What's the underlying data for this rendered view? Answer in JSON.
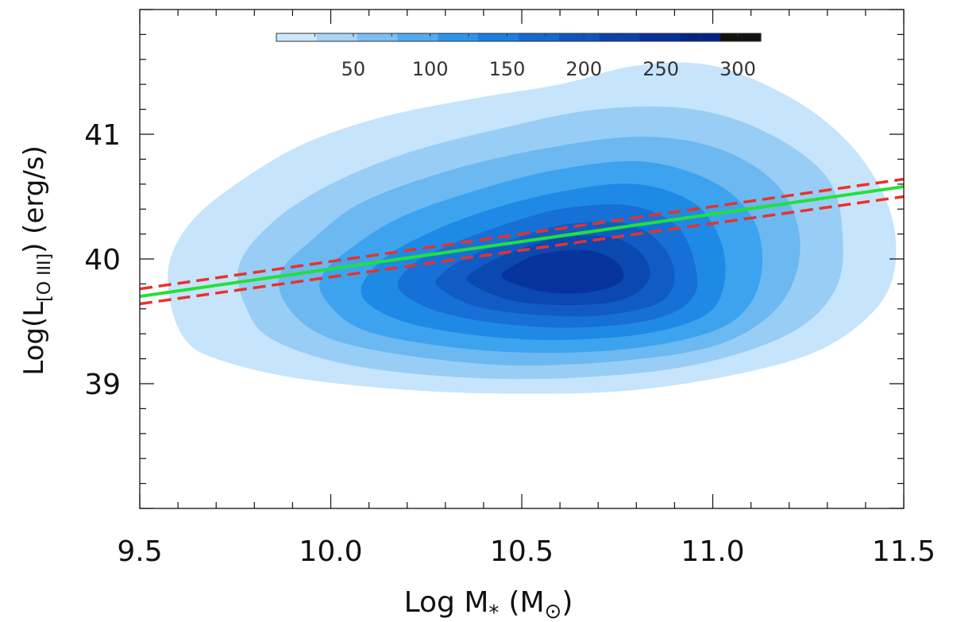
{
  "chart_data": {
    "type": "contour",
    "xlabel": "Log M",
    "xlabel_sub": "*",
    "xlabel_unit": "(M",
    "xlabel_unit_sub": "⊙",
    "xlabel_close": ")",
    "ylabel": "Log(L",
    "ylabel_sub": "[O III]",
    "ylabel_close": ")  (erg/s)",
    "xlim": [
      9.5,
      11.5
    ],
    "ylim": [
      38.0,
      42.0
    ],
    "x_ticks": [
      9.5,
      10.0,
      10.5,
      11.0,
      11.5
    ],
    "x_tick_labels": [
      "9.5",
      "10.0",
      "10.5",
      "11.0",
      "11.5"
    ],
    "y_ticks": [
      39,
      40,
      41
    ],
    "y_tick_labels": [
      "39",
      "40",
      "41"
    ],
    "colorbar": {
      "range": [
        0,
        315
      ],
      "tick_values": [
        50,
        100,
        150,
        200,
        250,
        300
      ],
      "tick_labels": [
        "50",
        "100",
        "150",
        "200",
        "250",
        "300"
      ],
      "colors": [
        "#cfe8fb",
        "#a7d4f7",
        "#7cbff3",
        "#52aaef",
        "#2b95eb",
        "#1a7ee0",
        "#1569cf",
        "#1055be",
        "#0b41ac",
        "#06309a",
        "#022486",
        "#111111"
      ]
    },
    "contour_levels": [
      {
        "level": 1,
        "color": "#c6e4fb",
        "points": [
          [
            9.62,
            39.35
          ],
          [
            9.7,
            39.2
          ],
          [
            9.9,
            39.05
          ],
          [
            10.2,
            38.95
          ],
          [
            10.5,
            38.92
          ],
          [
            10.8,
            38.95
          ],
          [
            11.1,
            39.1
          ],
          [
            11.3,
            39.3
          ],
          [
            11.44,
            39.65
          ],
          [
            11.48,
            40.05
          ],
          [
            11.45,
            40.5
          ],
          [
            11.35,
            40.95
          ],
          [
            11.2,
            41.3
          ],
          [
            11.0,
            41.55
          ],
          [
            10.8,
            41.55
          ],
          [
            10.6,
            41.4
          ],
          [
            10.4,
            41.3
          ],
          [
            10.15,
            41.15
          ],
          [
            9.95,
            40.95
          ],
          [
            9.8,
            40.7
          ],
          [
            9.65,
            40.35
          ],
          [
            9.58,
            40.0
          ],
          [
            9.58,
            39.65
          ]
        ]
      },
      {
        "level": 2,
        "color": "#98cdf5",
        "points": [
          [
            9.78,
            39.6
          ],
          [
            9.85,
            39.35
          ],
          [
            10.05,
            39.15
          ],
          [
            10.35,
            39.05
          ],
          [
            10.65,
            39.05
          ],
          [
            10.95,
            39.15
          ],
          [
            11.2,
            39.4
          ],
          [
            11.32,
            39.75
          ],
          [
            11.34,
            40.2
          ],
          [
            11.3,
            40.65
          ],
          [
            11.15,
            41.0
          ],
          [
            10.95,
            41.2
          ],
          [
            10.7,
            41.2
          ],
          [
            10.45,
            41.05
          ],
          [
            10.2,
            40.85
          ],
          [
            10.0,
            40.6
          ],
          [
            9.85,
            40.3
          ],
          [
            9.76,
            39.95
          ]
        ]
      },
      {
        "level": 3,
        "color": "#6cb8f1",
        "points": [
          [
            9.88,
            39.65
          ],
          [
            9.97,
            39.4
          ],
          [
            10.15,
            39.25
          ],
          [
            10.45,
            39.15
          ],
          [
            10.75,
            39.18
          ],
          [
            11.0,
            39.3
          ],
          [
            11.15,
            39.55
          ],
          [
            11.22,
            39.9
          ],
          [
            11.22,
            40.3
          ],
          [
            11.15,
            40.65
          ],
          [
            11.0,
            40.9
          ],
          [
            10.8,
            40.98
          ],
          [
            10.55,
            40.88
          ],
          [
            10.3,
            40.7
          ],
          [
            10.08,
            40.45
          ],
          [
            9.95,
            40.15
          ],
          [
            9.87,
            39.9
          ]
        ]
      },
      {
        "level": 4,
        "color": "#3da3ee",
        "points": [
          [
            9.98,
            39.7
          ],
          [
            10.07,
            39.45
          ],
          [
            10.25,
            39.32
          ],
          [
            10.5,
            39.25
          ],
          [
            10.78,
            39.28
          ],
          [
            11.0,
            39.42
          ],
          [
            11.1,
            39.65
          ],
          [
            11.13,
            40.0
          ],
          [
            11.1,
            40.35
          ],
          [
            11.0,
            40.62
          ],
          [
            10.82,
            40.78
          ],
          [
            10.6,
            40.72
          ],
          [
            10.38,
            40.55
          ],
          [
            10.18,
            40.33
          ],
          [
            10.05,
            40.08
          ],
          [
            9.98,
            39.88
          ]
        ]
      },
      {
        "level": 5,
        "color": "#1e8ae6",
        "points": [
          [
            10.08,
            39.72
          ],
          [
            10.17,
            39.52
          ],
          [
            10.35,
            39.4
          ],
          [
            10.58,
            39.35
          ],
          [
            10.82,
            39.4
          ],
          [
            10.98,
            39.55
          ],
          [
            11.03,
            39.8
          ],
          [
            11.02,
            40.15
          ],
          [
            10.95,
            40.45
          ],
          [
            10.8,
            40.6
          ],
          [
            10.62,
            40.55
          ],
          [
            10.42,
            40.4
          ],
          [
            10.25,
            40.2
          ],
          [
            10.13,
            39.98
          ]
        ]
      },
      {
        "level": 6,
        "color": "#1770d6",
        "points": [
          [
            10.18,
            39.75
          ],
          [
            10.28,
            39.58
          ],
          [
            10.45,
            39.48
          ],
          [
            10.65,
            39.45
          ],
          [
            10.85,
            39.52
          ],
          [
            10.95,
            39.7
          ],
          [
            10.95,
            40.0
          ],
          [
            10.9,
            40.28
          ],
          [
            10.78,
            40.43
          ],
          [
            10.6,
            40.4
          ],
          [
            10.43,
            40.25
          ],
          [
            10.28,
            40.07
          ],
          [
            10.2,
            39.92
          ]
        ]
      },
      {
        "level": 7,
        "color": "#115cc4",
        "points": [
          [
            10.28,
            39.78
          ],
          [
            10.38,
            39.62
          ],
          [
            10.55,
            39.55
          ],
          [
            10.72,
            39.55
          ],
          [
            10.86,
            39.65
          ],
          [
            10.9,
            39.85
          ],
          [
            10.87,
            40.1
          ],
          [
            10.78,
            40.28
          ],
          [
            10.62,
            40.28
          ],
          [
            10.47,
            40.15
          ],
          [
            10.35,
            40.0
          ],
          [
            10.29,
            39.88
          ]
        ]
      },
      {
        "level": 8,
        "color": "#0b48b0",
        "points": [
          [
            10.36,
            39.82
          ],
          [
            10.47,
            39.67
          ],
          [
            10.62,
            39.63
          ],
          [
            10.76,
            39.67
          ],
          [
            10.83,
            39.82
          ],
          [
            10.82,
            40.02
          ],
          [
            10.74,
            40.17
          ],
          [
            10.6,
            40.17
          ],
          [
            10.47,
            40.05
          ],
          [
            10.39,
            39.93
          ]
        ]
      },
      {
        "level": 9,
        "color": "#06349c",
        "points": [
          [
            10.45,
            39.85
          ],
          [
            10.55,
            39.74
          ],
          [
            10.67,
            39.73
          ],
          [
            10.76,
            39.82
          ],
          [
            10.75,
            39.97
          ],
          [
            10.67,
            40.07
          ],
          [
            10.55,
            40.04
          ],
          [
            10.48,
            39.95
          ]
        ]
      }
    ],
    "fit_line": {
      "color": "#22e03a",
      "x": [
        9.5,
        11.5
      ],
      "y": [
        39.7,
        40.58
      ]
    },
    "confidence_upper": {
      "color": "#e8322a",
      "x": [
        9.5,
        11.5
      ],
      "y": [
        39.76,
        40.64
      ]
    },
    "confidence_lower": {
      "color": "#e8322a",
      "x": [
        9.5,
        11.5
      ],
      "y": [
        39.64,
        40.5
      ]
    }
  }
}
